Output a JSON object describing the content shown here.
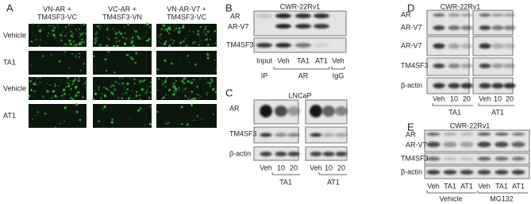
{
  "A": {
    "label": "A",
    "headers": [
      [
        "VN-AR +",
        "TM4SF3-VC"
      ],
      [
        "VC-AR +",
        "TM4SF3-VN"
      ],
      [
        "VN-AR-V7 +",
        "TM4SF3-VC"
      ]
    ],
    "rows": [
      "Vehicle",
      "TA1",
      "Vehicle",
      "AT1"
    ]
  },
  "B": {
    "label": "B",
    "cell_line": "CWR-22Rv1",
    "bands": [
      "AR",
      "AR-V7",
      "TM4SF3"
    ],
    "lanes": [
      "Input",
      "Veh",
      "TA1",
      "AT1",
      "Veh"
    ],
    "groups": [
      "IP",
      "AR",
      "IgG"
    ]
  },
  "C": {
    "label": "C",
    "cell_line": "LNCaP",
    "bands": [
      "AR",
      "TM4SF3",
      "β-actin"
    ],
    "lanes": [
      "Veh",
      "10",
      "20",
      "Veh",
      "10",
      "20"
    ],
    "groups": [
      "TA1",
      "AT1"
    ]
  },
  "D": {
    "label": "D",
    "cell_line": "CWR-22Rv1",
    "bands": [
      "AR",
      "AR-V7",
      "AR-V7",
      "TM4SF3",
      "β-actin"
    ],
    "lanes": [
      "Veh",
      "10",
      "20",
      "Veh",
      "10",
      "20"
    ],
    "groups": [
      "TA1",
      "AT1"
    ]
  },
  "E": {
    "label": "E",
    "cell_line": "CWR-22Rv1",
    "bands": [
      "AR",
      "AR-V7",
      "TM4SF3",
      "β-actin"
    ],
    "lanes": [
      "Veh",
      "TA1",
      "AT1",
      "Veh",
      "TA1",
      "AT1"
    ],
    "groups": [
      "Vehicle",
      "MG132"
    ]
  }
}
